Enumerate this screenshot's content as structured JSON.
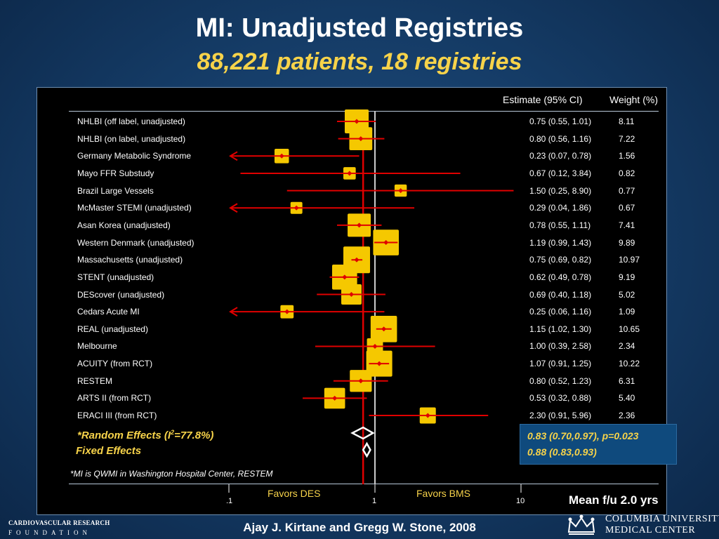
{
  "header": {
    "title": "MI: Unadjusted Registries",
    "subtitle": "88,221 patients, 18 registries"
  },
  "columns": {
    "estimate": "Estimate (95% CI)",
    "weight": "Weight (%)"
  },
  "chart_data": {
    "type": "forest",
    "x_scale": "log",
    "xlim": [
      0.1,
      10
    ],
    "x_ticks": [
      ".1",
      "1",
      "10"
    ],
    "reference_line": 1,
    "pooled_line": 0.83,
    "studies": [
      {
        "label": "NHLBI (off label, unadjusted)",
        "est": 0.75,
        "lo": 0.55,
        "hi": 1.01,
        "ci_text": "0.75 (0.55, 1.01)",
        "weight": "8.11"
      },
      {
        "label": "NHLBI (on label, unadjusted)",
        "est": 0.8,
        "lo": 0.56,
        "hi": 1.16,
        "ci_text": "0.80 (0.56, 1.16)",
        "weight": "7.22"
      },
      {
        "label": "Germany Metabolic Syndrome",
        "est": 0.23,
        "lo": 0.07,
        "hi": 0.78,
        "ci_text": "0.23 (0.07, 0.78)",
        "weight": "1.56"
      },
      {
        "label": "Mayo FFR Substudy",
        "est": 0.67,
        "lo": 0.12,
        "hi": 3.84,
        "ci_text": "0.67 (0.12, 3.84)",
        "weight": "0.82"
      },
      {
        "label": "Brazil Large Vessels",
        "est": 1.5,
        "lo": 0.25,
        "hi": 8.9,
        "ci_text": "1.50 (0.25, 8.90)",
        "weight": "0.77"
      },
      {
        "label": "McMaster STEMI (unadjusted)",
        "est": 0.29,
        "lo": 0.04,
        "hi": 1.86,
        "ci_text": "0.29 (0.04, 1.86)",
        "weight": "0.67"
      },
      {
        "label": "Asan Korea (unadjusted)",
        "est": 0.78,
        "lo": 0.55,
        "hi": 1.11,
        "ci_text": "0.78 (0.55, 1.11)",
        "weight": "7.41"
      },
      {
        "label": "Western Denmark (unadjusted)",
        "est": 1.19,
        "lo": 0.99,
        "hi": 1.43,
        "ci_text": "1.19 (0.99, 1.43)",
        "weight": "9.89"
      },
      {
        "label": "Massachusetts (unadjusted)",
        "est": 0.75,
        "lo": 0.69,
        "hi": 0.82,
        "ci_text": "0.75 (0.69, 0.82)",
        "weight": "10.97"
      },
      {
        "label": "STENT (unadjusted)",
        "est": 0.62,
        "lo": 0.49,
        "hi": 0.78,
        "ci_text": "0.62 (0.49, 0.78)",
        "weight": "9.19"
      },
      {
        "label": "DEScover (unadjusted)",
        "est": 0.69,
        "lo": 0.4,
        "hi": 1.18,
        "ci_text": "0.69 (0.40, 1.18)",
        "weight": "5.02"
      },
      {
        "label": "Cedars Acute MI",
        "est": 0.25,
        "lo": 0.06,
        "hi": 1.16,
        "ci_text": "0.25 (0.06, 1.16)",
        "weight": "1.09"
      },
      {
        "label": "REAL (unadjusted)",
        "est": 1.15,
        "lo": 1.02,
        "hi": 1.3,
        "ci_text": "1.15 (1.02, 1.30)",
        "weight": "10.65"
      },
      {
        "label": "Melbourne",
        "est": 1.0,
        "lo": 0.39,
        "hi": 2.58,
        "ci_text": "1.00 (0.39, 2.58)",
        "weight": "2.34"
      },
      {
        "label": "ACUITY (from RCT)",
        "est": 1.07,
        "lo": 0.91,
        "hi": 1.25,
        "ci_text": "1.07 (0.91, 1.25)",
        "weight": "10.22"
      },
      {
        "label": "RESTEM",
        "est": 0.8,
        "lo": 0.52,
        "hi": 1.23,
        "ci_text": "0.80 (0.52, 1.23)",
        "weight": "6.31"
      },
      {
        "label": "ARTS II (from RCT)",
        "est": 0.53,
        "lo": 0.32,
        "hi": 0.88,
        "ci_text": "0.53 (0.32, 0.88)",
        "weight": "5.40"
      },
      {
        "label": "ERACI III (from RCT)",
        "est": 2.3,
        "lo": 0.91,
        "hi": 5.96,
        "ci_text": "2.30 (0.91, 5.96)",
        "weight": "2.36"
      }
    ],
    "pooled": {
      "random": {
        "est": 0.83,
        "lo": 0.7,
        "hi": 0.97
      },
      "fixed": {
        "est": 0.88,
        "lo": 0.83,
        "hi": 0.93
      }
    },
    "favors_left": "Favors DES",
    "favors_right": "Favors BMS",
    "colors": {
      "box": "#f5c800",
      "ci_line": "#e00000",
      "point": "#e00000",
      "pooled_line": "#e00000",
      "null_line": "#cccccc",
      "diamond": "#ffffff"
    }
  },
  "summary": {
    "random_label_pre": "*Random Effects (I",
    "random_label_sup": "2",
    "random_label_post": "=77.8%)",
    "fixed_label": "Fixed Effects",
    "random_result": "0.83 (0.70,0.97), p=0.023",
    "fixed_result": "0.88 (0.83,0.93)"
  },
  "footnote": "*MI is QWMI in Washington Hospital Center, RESTEM",
  "mean_followup": "Mean f/u 2.0 yrs",
  "credit": "Ajay J. Kirtane and Gregg W. Stone, 2008",
  "logos": {
    "left_line1": "CARDIOVASCULAR RESEARCH",
    "left_line2": "FOUNDATION",
    "right_line1": "COLUMBIA UNIVERSITY",
    "right_line2": "MEDICAL CENTER"
  }
}
